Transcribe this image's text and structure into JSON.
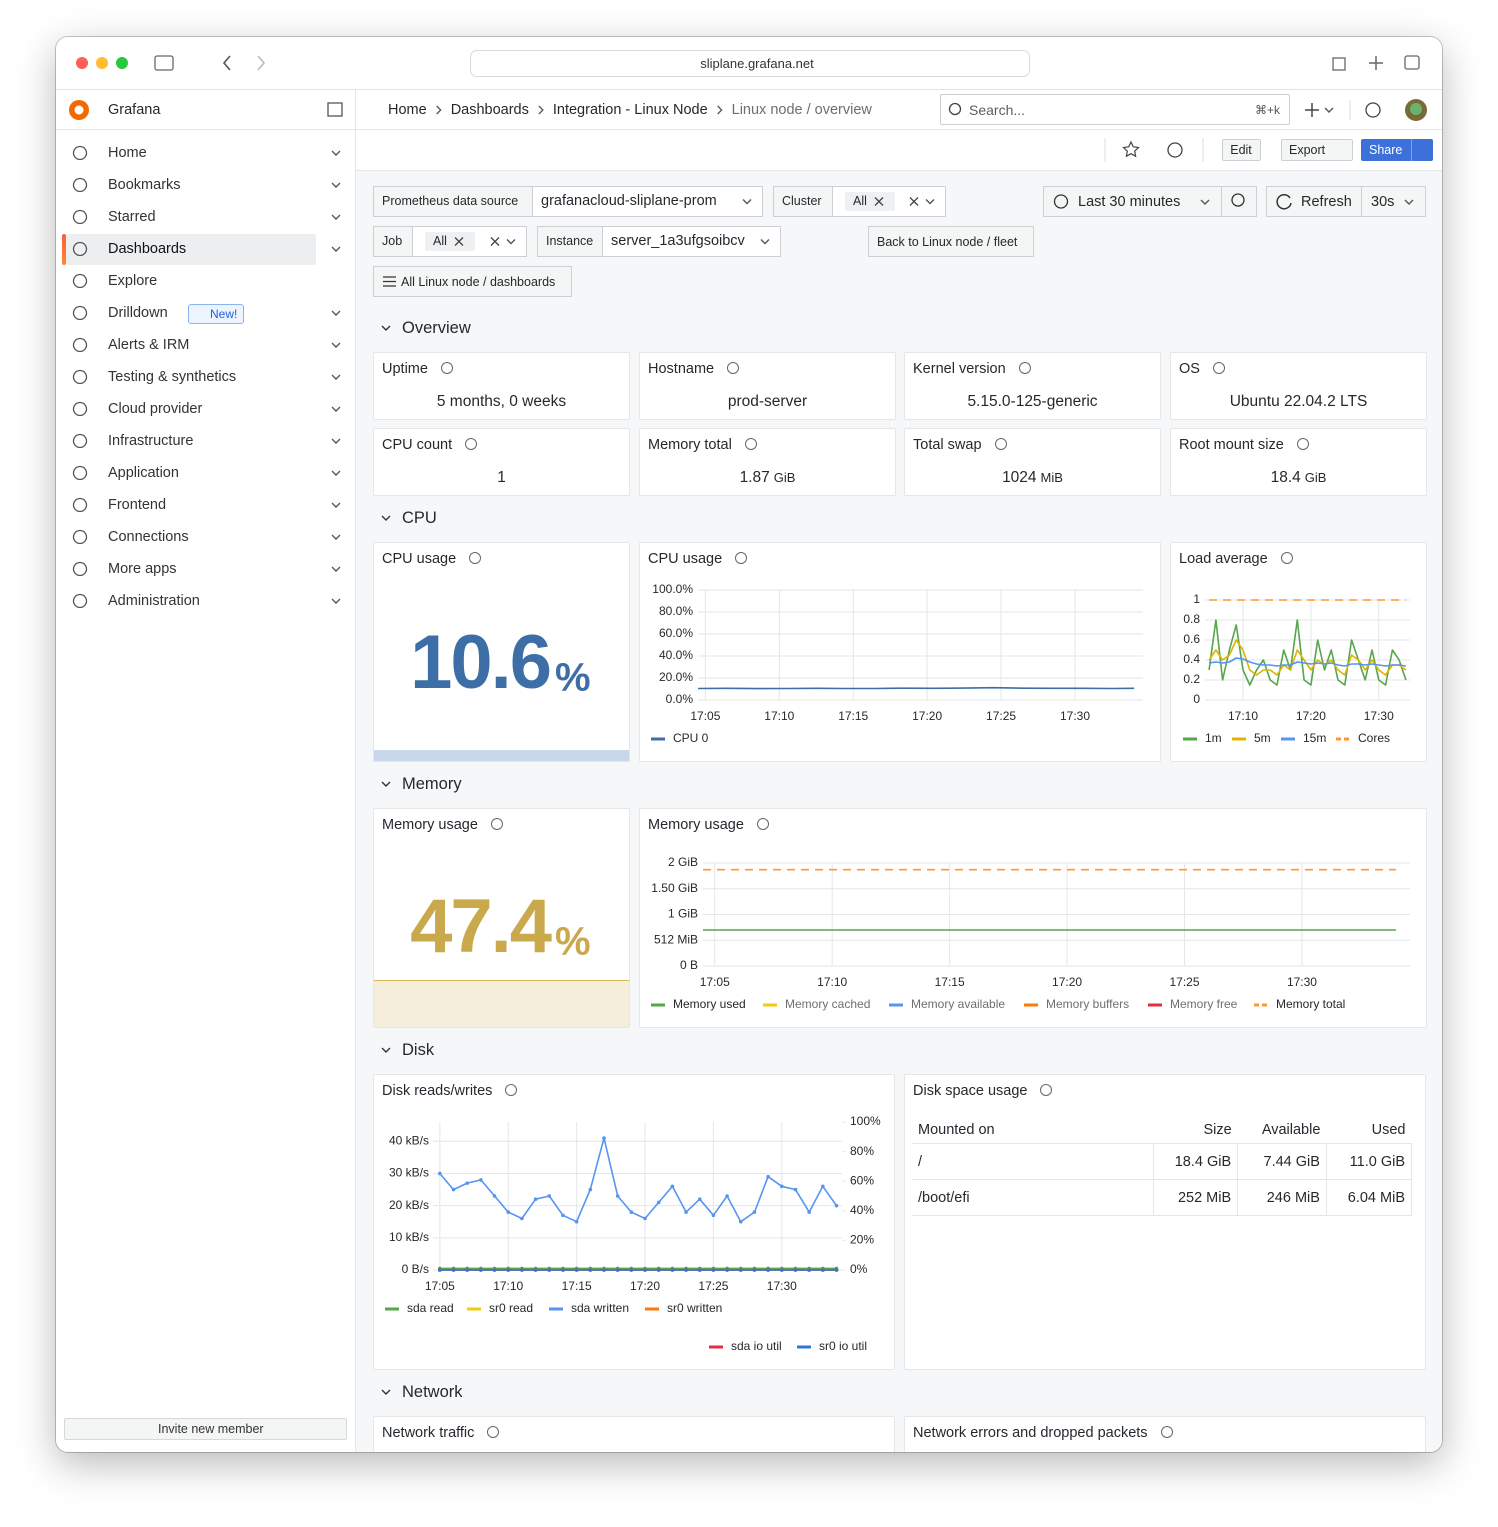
{
  "browser": {
    "url": "sliplane.grafana.net"
  },
  "sidebar": {
    "brand": "Grafana",
    "items": [
      "Home",
      "Bookmarks",
      "Starred",
      "Dashboards",
      "Explore",
      "Drilldown",
      "Alerts & IRM",
      "Testing & synthetics",
      "Cloud provider",
      "Infrastructure",
      "Application",
      "Frontend",
      "Connections",
      "More apps",
      "Administration"
    ],
    "active": 3,
    "badge": "New!",
    "invite": "Invite new member"
  },
  "header": {
    "breadcrumbs": [
      "Home",
      "Dashboards",
      "Integration - Linux Node",
      "Linux node / overview"
    ],
    "search": "Search...",
    "shortcut": "⌘+k"
  },
  "toolbar": {
    "edit": "Edit",
    "export": "Export",
    "share": "Share"
  },
  "controls": {
    "variables": [
      {
        "label": "Prometheus data source",
        "value": "grafanacloud-sliplane-prom"
      },
      {
        "label": "Cluster",
        "value": "All"
      },
      {
        "label": "Job",
        "value": "All"
      },
      {
        "label": "Instance",
        "value": "server_1a3ufgsoibcv"
      }
    ],
    "time_range": "Last 30 minutes",
    "refresh": "Refresh",
    "interval": "30s",
    "back_link": "Back to Linux node / fleet",
    "dashboards_link": "All Linux node / dashboards"
  },
  "rows": [
    "Overview",
    "CPU",
    "Memory",
    "Disk",
    "Network"
  ],
  "stats": [
    {
      "title": "Uptime",
      "value": "5 months, 0 weeks"
    },
    {
      "title": "Hostname",
      "value": "prod-server"
    },
    {
      "title": "Kernel version",
      "value": "5.15.0-125-generic"
    },
    {
      "title": "OS",
      "value": "Ubuntu 22.04.2 LTS"
    },
    {
      "title": "CPU count",
      "value": 1
    },
    {
      "title": "Memory total",
      "value": 1.87,
      "unit": "GiB"
    },
    {
      "title": "Total swap",
      "value": 1024,
      "unit": "MiB"
    },
    {
      "title": "Root mount size",
      "value": 18.4,
      "unit": "GiB"
    }
  ],
  "cpu_gauge": {
    "title": "CPU usage",
    "value": 10.6,
    "unit": "%",
    "color": "#3d6fa6"
  },
  "cpu_chart": {
    "type": "line",
    "title": "CPU usage",
    "x": [
      4.5,
      6.5,
      8.5,
      10.5,
      12.5,
      14.5,
      16.5,
      18.5,
      20.5,
      22.5,
      24.5,
      26.5,
      28.5,
      30.5,
      32.5,
      34
    ],
    "xlim": [
      4.5,
      34.6
    ],
    "xticks": [
      {
        "value": 5,
        "label": "17:05"
      },
      {
        "value": 10,
        "label": "17:10"
      },
      {
        "value": 15,
        "label": "17:15"
      },
      {
        "value": 20,
        "label": "17:20"
      },
      {
        "value": 25,
        "label": "17:25"
      },
      {
        "value": 30,
        "label": "17:30"
      }
    ],
    "ylim": [
      0,
      100
    ],
    "yticks": [
      {
        "value": 0,
        "label": "0.0%"
      },
      {
        "value": 20,
        "label": "20.0%"
      },
      {
        "value": 40,
        "label": "40.0%"
      },
      {
        "value": 60,
        "label": "60.0%"
      },
      {
        "value": 80,
        "label": "80.0%"
      },
      {
        "value": 100,
        "label": "100.0%"
      }
    ],
    "series": [
      {
        "name": "CPU 0",
        "color": "#3d6fa6",
        "values": [
          10.5,
          10.6,
          10.4,
          10.5,
          10.6,
          10.5,
          10.5,
          10.7,
          10.6,
          10.8,
          11.2,
          10.7,
          10.6,
          10.6,
          10.5,
          10.6
        ]
      }
    ]
  },
  "load_chart": {
    "type": "line",
    "title": "Load average",
    "x": [
      5,
      6,
      7,
      8,
      9,
      10,
      11,
      12,
      13,
      14,
      15,
      16,
      17,
      18,
      19,
      20,
      21,
      22,
      23,
      24,
      25,
      26,
      27,
      28,
      29,
      30,
      31,
      32,
      33,
      34
    ],
    "xlim": [
      4.4,
      34.6
    ],
    "xticks": [
      {
        "value": 10,
        "label": "17:10"
      },
      {
        "value": 20,
        "label": "17:20"
      },
      {
        "value": 30,
        "label": "17:30"
      }
    ],
    "ylim": [
      0,
      1
    ],
    "yticks": [
      0,
      0.2,
      0.4,
      0.6,
      0.8,
      1
    ],
    "series": [
      {
        "name": "1m",
        "color": "#56a64b",
        "values": [
          0.3,
          0.8,
          0.2,
          0.5,
          0.75,
          0.3,
          0.15,
          0.3,
          0.4,
          0.2,
          0.15,
          0.5,
          0.3,
          0.8,
          0.2,
          0.15,
          0.6,
          0.3,
          0.5,
          0.2,
          0.15,
          0.6,
          0.4,
          0.2,
          0.5,
          0.2,
          0.15,
          0.5,
          0.4,
          0.2
        ]
      },
      {
        "name": "5m",
        "color": "#e0b400",
        "values": [
          0.4,
          0.5,
          0.4,
          0.45,
          0.6,
          0.5,
          0.3,
          0.25,
          0.3,
          0.3,
          0.25,
          0.35,
          0.3,
          0.5,
          0.4,
          0.3,
          0.4,
          0.35,
          0.4,
          0.3,
          0.25,
          0.45,
          0.4,
          0.3,
          0.4,
          0.3,
          0.25,
          0.35,
          0.35,
          0.3
        ]
      },
      {
        "name": "15m",
        "color": "#5794f2",
        "values": [
          0.37,
          0.38,
          0.37,
          0.38,
          0.42,
          0.41,
          0.38,
          0.36,
          0.35,
          0.35,
          0.34,
          0.35,
          0.35,
          0.38,
          0.37,
          0.36,
          0.37,
          0.36,
          0.37,
          0.35,
          0.34,
          0.36,
          0.36,
          0.35,
          0.36,
          0.35,
          0.34,
          0.35,
          0.35,
          0.34
        ]
      },
      {
        "name": "Cores",
        "color": "#ff9830",
        "dashed": true,
        "values": [
          1,
          1,
          1,
          1,
          1,
          1,
          1,
          1,
          1,
          1,
          1,
          1,
          1,
          1,
          1,
          1,
          1,
          1,
          1,
          1,
          1,
          1,
          1,
          1,
          1,
          1,
          1,
          1,
          1,
          1
        ]
      }
    ]
  },
  "memory_gauge": {
    "title": "Memory usage",
    "value": 47.4,
    "unit": "%",
    "color": "#c9a94b"
  },
  "memory_chart": {
    "type": "line",
    "title": "Memory usage",
    "x": [
      4.5,
      10,
      15,
      20,
      25,
      30,
      34
    ],
    "xlim": [
      4.5,
      34.6
    ],
    "xticks": [
      {
        "value": 5,
        "label": "17:05"
      },
      {
        "value": 10,
        "label": "17:10"
      },
      {
        "value": 15,
        "label": "17:15"
      },
      {
        "value": 20,
        "label": "17:20"
      },
      {
        "value": 25,
        "label": "17:25"
      },
      {
        "value": 30,
        "label": "17:30"
      }
    ],
    "ylim": [
      0,
      2
    ],
    "yticks": [
      {
        "value": 0,
        "label": "0 B"
      },
      {
        "value": 0.5,
        "label": "512 MiB"
      },
      {
        "value": 1,
        "label": "1 GiB"
      },
      {
        "value": 1.5,
        "label": "1.50 GiB"
      },
      {
        "value": 2,
        "label": "2 GiB"
      }
    ],
    "series": [
      {
        "name": "Memory used",
        "color": "#56a64b",
        "values": [
          0.7,
          0.7,
          0.7,
          0.7,
          0.7,
          0.7,
          0.7
        ]
      },
      {
        "name": "Memory cached",
        "color": "#f2cc0c",
        "values": [
          null,
          null,
          null,
          null,
          null,
          null,
          null
        ]
      },
      {
        "name": "Memory available",
        "color": "#5794f2",
        "values": [
          null,
          null,
          null,
          null,
          null,
          null,
          null
        ]
      },
      {
        "name": "Memory buffers",
        "color": "#ff780a",
        "values": [
          null,
          null,
          null,
          null,
          null,
          null,
          null
        ]
      },
      {
        "name": "Memory free",
        "color": "#e02f44",
        "values": [
          null,
          null,
          null,
          null,
          null,
          null,
          null
        ]
      },
      {
        "name": "Memory total",
        "color": "#ff9830",
        "dashed": true,
        "values": [
          1.87,
          1.87,
          1.87,
          1.87,
          1.87,
          1.87,
          1.87
        ]
      }
    ]
  },
  "disk_chart": {
    "type": "line",
    "title": "Disk reads/writes",
    "points": true,
    "x": [
      5,
      6,
      7,
      8,
      9,
      10,
      11,
      12,
      13,
      14,
      15,
      16,
      17,
      18,
      19,
      20,
      21,
      22,
      23,
      24,
      25,
      26,
      27,
      28,
      29,
      30,
      31,
      32,
      33,
      34
    ],
    "xlim": [
      4.5,
      34.4
    ],
    "xticks": [
      {
        "value": 5,
        "label": "17:05"
      },
      {
        "value": 10,
        "label": "17:10"
      },
      {
        "value": 15,
        "label": "17:15"
      },
      {
        "value": 20,
        "label": "17:20"
      },
      {
        "value": 25,
        "label": "17:25"
      },
      {
        "value": 30,
        "label": "17:30"
      }
    ],
    "ylim": [
      0,
      46
    ],
    "yticks": [
      {
        "value": 0,
        "label": "0 B/s"
      },
      {
        "value": 10,
        "label": "10 kB/s"
      },
      {
        "value": 20,
        "label": "20 kB/s"
      },
      {
        "value": 30,
        "label": "30 kB/s"
      },
      {
        "value": 40,
        "label": "40 kB/s"
      }
    ],
    "y2lim": [
      0,
      100
    ],
    "y2ticks": [
      {
        "value": 0,
        "label": "0%"
      },
      {
        "value": 20,
        "label": "20%"
      },
      {
        "value": 40,
        "label": "40%"
      },
      {
        "value": 60,
        "label": "60%"
      },
      {
        "value": 80,
        "label": "80%"
      },
      {
        "value": 100,
        "label": "100%"
      }
    ],
    "series": [
      {
        "name": "sda read",
        "color": "#56a64b",
        "values": [
          0.5,
          0.5,
          0.5,
          0.5,
          0.5,
          0.5,
          0.5,
          0.5,
          0.5,
          0.5,
          0.5,
          0.5,
          0.5,
          0.5,
          0.5,
          0.5,
          0.5,
          0.5,
          0.5,
          0.5,
          0.5,
          0.5,
          0.5,
          0.5,
          0.5,
          0.5,
          0.5,
          0.5,
          0.5,
          0.5
        ]
      },
      {
        "name": "sr0 read",
        "color": "#f2cc0c",
        "values": [
          0,
          0,
          0,
          0,
          0,
          0,
          0,
          0,
          0,
          0,
          0,
          0,
          0,
          0,
          0,
          0,
          0,
          0,
          0,
          0,
          0,
          0,
          0,
          0,
          0,
          0,
          0,
          0,
          0,
          0
        ]
      },
      {
        "name": "sda written",
        "color": "#5794f2",
        "values": [
          30,
          25,
          27,
          28,
          23,
          18,
          16,
          22,
          23,
          17,
          15,
          25,
          41,
          23,
          18,
          16,
          21,
          26,
          18,
          22,
          17,
          23,
          15,
          18,
          29,
          26,
          25,
          18,
          26,
          20
        ]
      },
      {
        "name": "sr0 written",
        "color": "#ff780a",
        "values": [
          0,
          0,
          0,
          0,
          0,
          0,
          0,
          0,
          0,
          0,
          0,
          0,
          0,
          0,
          0,
          0,
          0,
          0,
          0,
          0,
          0,
          0,
          0,
          0,
          0,
          0,
          0,
          0,
          0,
          0
        ]
      },
      {
        "name": "sda io util",
        "color": "#e02f44",
        "axis": "y2",
        "values": [
          0,
          0,
          0,
          0,
          0,
          0,
          0,
          0,
          0,
          0,
          0,
          0,
          0,
          0,
          0,
          0,
          0,
          0,
          0,
          0,
          0,
          0,
          0,
          0,
          0,
          0,
          0,
          0,
          0,
          0
        ]
      },
      {
        "name": "sr0 io util",
        "color": "#3274d9",
        "axis": "y2",
        "values": [
          0,
          0,
          0,
          0,
          0,
          0,
          0,
          0,
          0,
          0,
          0,
          0,
          0,
          0,
          0,
          0,
          0,
          0,
          0,
          0,
          0,
          0,
          0,
          0,
          0,
          0,
          0,
          0,
          0,
          0
        ]
      }
    ]
  },
  "disk_table": {
    "title": "Disk space usage",
    "columns": [
      "Mounted on",
      "Size",
      "Available",
      "Used"
    ],
    "rows": [
      [
        "/",
        "18.4 GiB",
        "7.44 GiB",
        "11.0 GiB"
      ],
      [
        "/boot/efi",
        "252 MiB",
        "246 MiB",
        "6.04 MiB"
      ]
    ]
  },
  "network_panels": [
    "Network traffic",
    "Network errors and dropped packets"
  ]
}
